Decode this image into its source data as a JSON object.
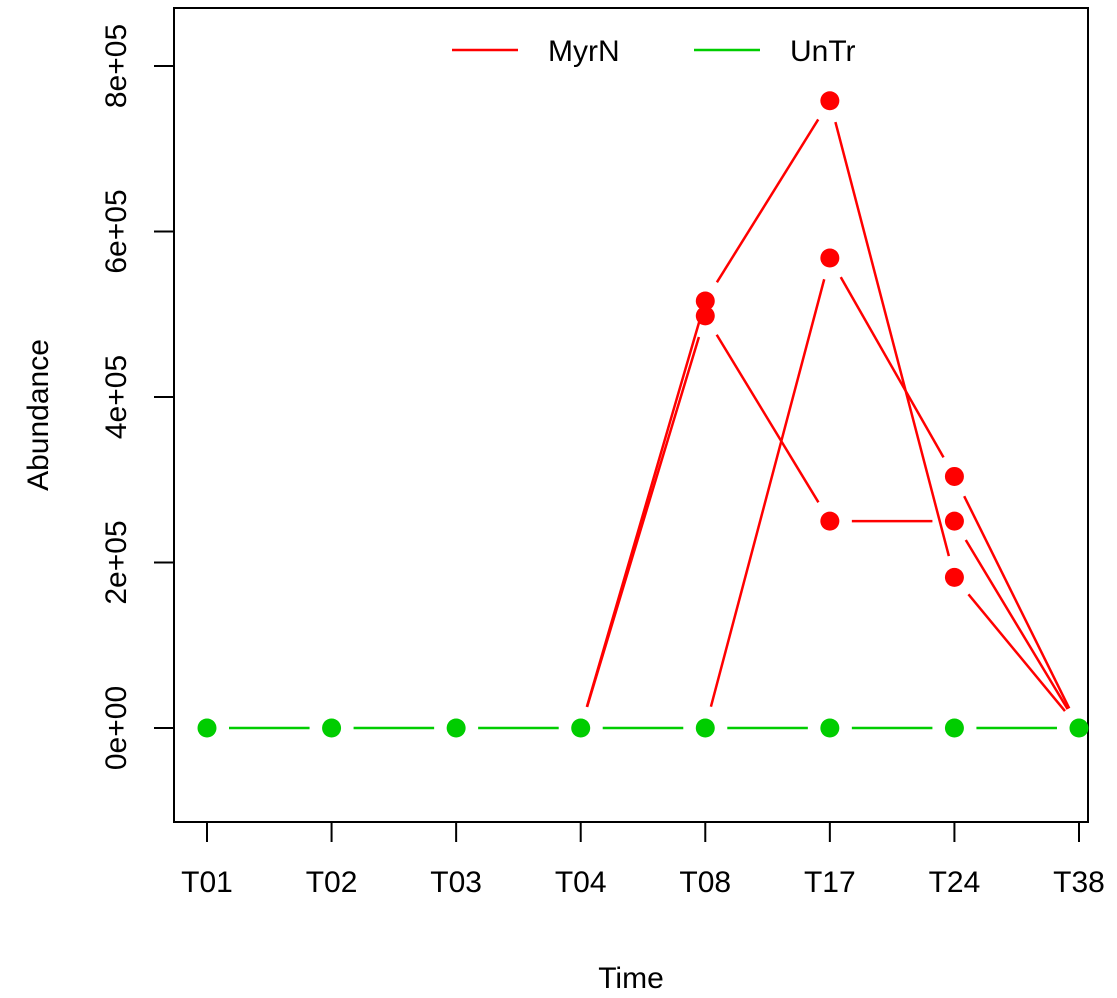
{
  "chart_data": {
    "type": "line",
    "title": "",
    "xlabel": "Time",
    "ylabel": "Abundance",
    "categories": [
      "T01",
      "T02",
      "T03",
      "T04",
      "T08",
      "T17",
      "T24",
      "T38"
    ],
    "ylim": [
      -100000,
      860000
    ],
    "yticks": [
      0,
      200000,
      400000,
      600000,
      800000
    ],
    "ytick_labels": [
      "0e+00",
      "2e+05",
      "4e+05",
      "6e+05",
      "8e+05"
    ],
    "grid": false,
    "legend_position": "top",
    "legend": [
      {
        "label": "MyrN",
        "color": "#ff0000"
      },
      {
        "label": "UnTr",
        "color": "#00cd00"
      }
    ],
    "series": [
      {
        "group": "MyrN",
        "color": "#ff0000",
        "values": [
          null,
          null,
          null,
          0,
          516000,
          758000,
          182000,
          0
        ]
      },
      {
        "group": "MyrN",
        "color": "#ff0000",
        "values": [
          null,
          null,
          null,
          0,
          498000,
          250000,
          250000,
          0
        ]
      },
      {
        "group": "MyrN",
        "color": "#ff0000",
        "values": [
          null,
          null,
          null,
          null,
          0,
          568000,
          304000,
          0
        ]
      },
      {
        "group": "UnTr",
        "color": "#00cd00",
        "values": [
          0,
          0,
          0,
          0,
          0,
          0,
          0,
          0
        ]
      }
    ]
  }
}
